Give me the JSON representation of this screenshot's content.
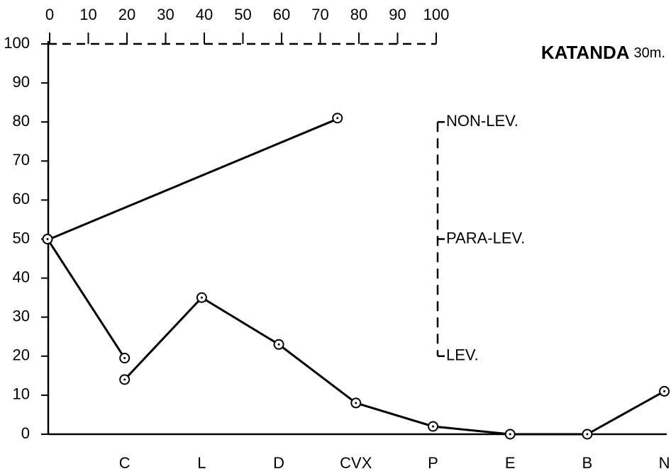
{
  "chart_data": {
    "type": "line",
    "title": "KATANDA",
    "subtitle": "30m.",
    "categories": [
      null,
      "C",
      "L",
      "D",
      "CVX",
      "P",
      "E",
      "B",
      "N"
    ],
    "series": [
      {
        "color": "#000000",
        "values": [
          50,
          19.5,
          null,
          null,
          null,
          null,
          null,
          null,
          null
        ]
      },
      {
        "color": "#000000",
        "values": [
          null,
          14,
          35,
          23,
          8,
          2,
          0,
          0,
          11
        ]
      }
    ],
    "top_series": {
      "color": "#000000",
      "x": [
        0,
        75
      ],
      "values": [
        50,
        81
      ]
    },
    "ylim": [
      0,
      100
    ],
    "yticks": [
      0,
      10,
      20,
      30,
      40,
      50,
      60,
      70,
      80,
      90,
      100
    ],
    "x2lim": [
      0,
      100
    ],
    "x2ticks": [
      0,
      10,
      20,
      30,
      40,
      50,
      60,
      70,
      80,
      90,
      100
    ],
    "annotations": [
      {
        "text": "NON-LEV.",
        "y": 80
      },
      {
        "text": "PARA-LEV.",
        "y": 50
      },
      {
        "text": "LEV.",
        "y": 20
      }
    ]
  }
}
